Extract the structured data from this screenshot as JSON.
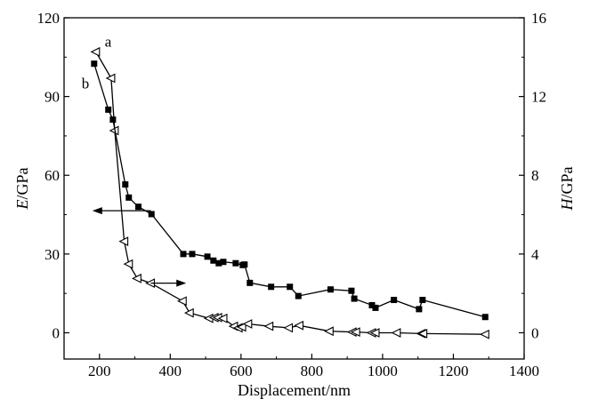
{
  "chart_data": {
    "type": "line",
    "xlabel": "Displacement/nm",
    "ylabel_left_italic": "E",
    "ylabel_left_unit": "/GPa",
    "ylabel_right_italic": "H",
    "ylabel_right_unit": "/GPa",
    "xlim": [
      100,
      1400
    ],
    "ylim_left": [
      -10,
      120
    ],
    "ylim_right": [
      -1.333,
      16
    ],
    "x_ticks": [
      200,
      400,
      600,
      800,
      1000,
      1200,
      1400
    ],
    "y_ticks_left": [
      0,
      30,
      60,
      90,
      120
    ],
    "y_ticks_right": [
      0,
      4,
      8,
      12,
      16
    ],
    "grid": false,
    "series": [
      {
        "name": "a",
        "axis": "right",
        "marker": "open-triangle-left",
        "x": [
          190,
          233,
          243,
          270,
          283,
          307,
          345,
          435,
          455,
          510,
          525,
          535,
          550,
          580,
          593,
          603,
          620,
          680,
          735,
          765,
          850,
          915,
          925,
          970,
          980,
          1040,
          1110,
          1115,
          1290
        ],
        "y": [
          14.27,
          12.93,
          10.27,
          4.64,
          3.49,
          2.76,
          2.52,
          1.61,
          1.01,
          0.73,
          0.77,
          0.77,
          0.73,
          0.33,
          0.25,
          0.29,
          0.45,
          0.33,
          0.25,
          0.37,
          0.08,
          0.04,
          0.04,
          0.0,
          0.0,
          0.0,
          -0.04,
          -0.04,
          -0.08
        ]
      },
      {
        "name": "b",
        "axis": "left",
        "marker": "filled-square",
        "x": [
          185,
          225,
          238,
          273,
          283,
          310,
          347,
          437,
          462,
          505,
          522,
          537,
          550,
          585,
          605,
          610,
          625,
          685,
          738,
          762,
          853,
          912,
          920,
          970,
          980,
          1032,
          1103,
          1113,
          1290
        ],
        "y": [
          102.5,
          85.0,
          81.2,
          56.5,
          51.5,
          48.0,
          45.2,
          30.0,
          30.0,
          29.0,
          27.5,
          26.5,
          27.0,
          26.5,
          25.8,
          26.0,
          19.0,
          17.5,
          17.5,
          14.0,
          16.5,
          16.0,
          13.0,
          10.5,
          9.5,
          12.5,
          9.0,
          12.5,
          6.0
        ]
      }
    ],
    "annotations": [
      {
        "text": "a",
        "near_series": "a"
      },
      {
        "text": "b",
        "near_series": "b"
      }
    ],
    "axis_indicator_arrows": [
      {
        "points_to": "left",
        "attached_series": "b"
      },
      {
        "points_to": "right",
        "attached_series": "a"
      }
    ]
  }
}
